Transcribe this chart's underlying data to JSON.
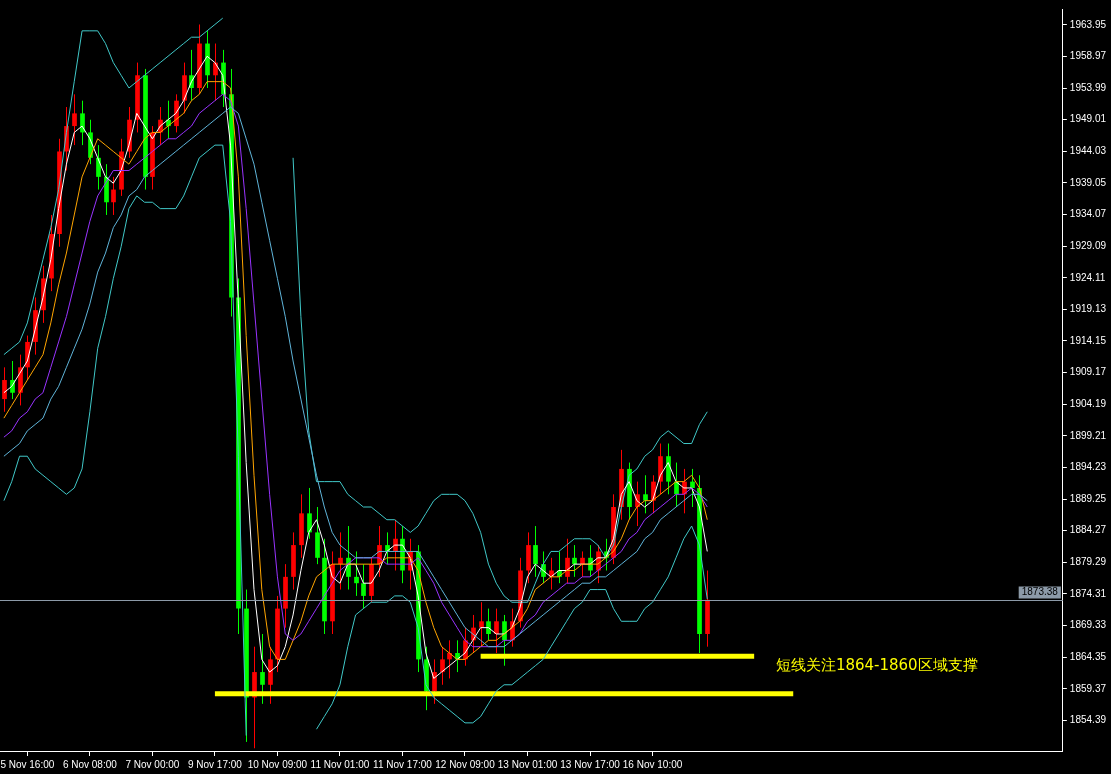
{
  "chart_data": {
    "type": "candlestick",
    "categories": [
      null,
      null,
      null,
      "5 Nov 16:00",
      null,
      null,
      null,
      null,
      null,
      null,
      null,
      "6 Nov 08:00",
      null,
      null,
      null,
      null,
      null,
      null,
      null,
      "7 Nov 00:00",
      null,
      null,
      null,
      null,
      null,
      null,
      null,
      "9 Nov 17:00",
      null,
      null,
      null,
      null,
      null,
      null,
      null,
      "10 Nov 09:00",
      null,
      null,
      null,
      null,
      null,
      null,
      null,
      "11 Nov 01:00",
      null,
      null,
      null,
      null,
      null,
      null,
      null,
      "11 Nov 17:00",
      null,
      null,
      null,
      null,
      null,
      null,
      null,
      "12 Nov 09:00",
      null,
      null,
      null,
      null,
      null,
      null,
      null,
      "13 Nov 01:00",
      null,
      null,
      null,
      null,
      null,
      null,
      null,
      "13 Nov 17:00",
      null,
      null,
      null,
      null,
      null,
      null,
      null,
      "16 Nov 10:00",
      null,
      null,
      null,
      null,
      null,
      null,
      null,
      null,
      null,
      null,
      null,
      null,
      null,
      null,
      null,
      null,
      null,
      null,
      null,
      null,
      null,
      null,
      null,
      null,
      null,
      null,
      null,
      null,
      null,
      null,
      null,
      null,
      null,
      null,
      null,
      null,
      null,
      null,
      null,
      null,
      null,
      null,
      null,
      null,
      null,
      null,
      null,
      null,
      null,
      null,
      null,
      null
    ],
    "ohlc": [
      [
        1905,
        1910,
        1903,
        1908
      ],
      [
        1908,
        1911,
        1905,
        1906
      ],
      [
        1906,
        1912,
        1904,
        1910
      ],
      [
        1910,
        1915,
        1908,
        1914
      ],
      [
        1914,
        1921,
        1912,
        1919
      ],
      [
        1919,
        1926,
        1917,
        1924
      ],
      [
        1924,
        1934,
        1922,
        1931
      ],
      [
        1931,
        1946,
        1929,
        1944
      ],
      [
        1944,
        1951,
        1941,
        1948
      ],
      [
        1948,
        1953,
        1945,
        1950
      ],
      [
        1950,
        1952,
        1945,
        1947
      ],
      [
        1947,
        1949,
        1942,
        1943
      ],
      [
        1943,
        1945,
        1938,
        1940
      ],
      [
        1940,
        1942,
        1934,
        1936
      ],
      [
        1936,
        1940,
        1934,
        1938
      ],
      [
        1938,
        1946,
        1937,
        1944
      ],
      [
        1944,
        1951,
        1943,
        1949
      ],
      [
        1949,
        1958,
        1947,
        1956
      ],
      [
        1956,
        1957,
        1938,
        1940
      ],
      [
        1940,
        1948,
        1938,
        1947
      ],
      [
        1947,
        1951,
        1945,
        1949
      ],
      [
        1949,
        1952,
        1946,
        1948
      ],
      [
        1948,
        1953,
        1947,
        1952
      ],
      [
        1952,
        1958,
        1950,
        1956
      ],
      [
        1956,
        1960,
        1952,
        1954
      ],
      [
        1954,
        1964,
        1953,
        1961
      ],
      [
        1961,
        1963,
        1954,
        1956
      ],
      [
        1956,
        1961,
        1952,
        1958
      ],
      [
        1958,
        1960,
        1951,
        1953
      ],
      [
        1953,
        1957,
        1918,
        1921
      ],
      [
        1921,
        1924,
        1868,
        1872
      ],
      [
        1872,
        1875,
        1851,
        1858
      ],
      [
        1858,
        1866,
        1850,
        1862
      ],
      [
        1862,
        1868,
        1857,
        1860
      ],
      [
        1860,
        1866,
        1857,
        1864
      ],
      [
        1864,
        1874,
        1862,
        1872
      ],
      [
        1872,
        1879,
        1869,
        1877
      ],
      [
        1877,
        1884,
        1875,
        1882
      ],
      [
        1882,
        1890,
        1880,
        1887
      ],
      [
        1887,
        1891,
        1883,
        1884
      ],
      [
        1884,
        1888,
        1879,
        1880
      ],
      [
        1880,
        1883,
        1868,
        1870
      ],
      [
        1870,
        1881,
        1868,
        1879
      ],
      [
        1879,
        1884,
        1875,
        1880
      ],
      [
        1880,
        1885,
        1875,
        1877
      ],
      [
        1877,
        1881,
        1874,
        1876
      ],
      [
        1876,
        1879,
        1872,
        1874
      ],
      [
        1874,
        1880,
        1873,
        1879
      ],
      [
        1879,
        1885,
        1877,
        1882
      ],
      [
        1882,
        1884,
        1879,
        1881
      ],
      [
        1881,
        1886,
        1878,
        1883
      ],
      [
        1883,
        1885,
        1876,
        1878
      ],
      [
        1878,
        1883,
        1875,
        1881
      ],
      [
        1881,
        1882,
        1862,
        1864
      ],
      [
        1864,
        1866,
        1856,
        1859
      ],
      [
        1859,
        1864,
        1857,
        1862
      ],
      [
        1862,
        1866,
        1860,
        1864
      ],
      [
        1864,
        1867,
        1861,
        1865
      ],
      [
        1865,
        1867,
        1862,
        1864
      ],
      [
        1864,
        1869,
        1863,
        1867
      ],
      [
        1867,
        1871,
        1865,
        1869
      ],
      [
        1869,
        1873,
        1866,
        1870
      ],
      [
        1870,
        1872,
        1867,
        1868
      ],
      [
        1868,
        1872,
        1865,
        1870
      ],
      [
        1870,
        1871,
        1863,
        1867
      ],
      [
        1867,
        1872,
        1866,
        1870
      ],
      [
        1870,
        1880,
        1869,
        1878
      ],
      [
        1878,
        1884,
        1876,
        1882
      ],
      [
        1882,
        1885,
        1877,
        1879
      ],
      [
        1879,
        1881,
        1876,
        1877
      ],
      [
        1877,
        1880,
        1875,
        1878
      ],
      [
        1878,
        1881,
        1876,
        1877
      ],
      [
        1877,
        1883,
        1876,
        1880
      ],
      [
        1880,
        1882,
        1877,
        1879
      ],
      [
        1879,
        1881,
        1877,
        1880
      ],
      [
        1880,
        1882,
        1877,
        1878
      ],
      [
        1878,
        1882,
        1876,
        1881
      ],
      [
        1881,
        1883,
        1878,
        1880
      ],
      [
        1880,
        1890,
        1879,
        1888
      ],
      [
        1888,
        1897,
        1886,
        1894
      ],
      [
        1894,
        1895,
        1886,
        1888
      ],
      [
        1888,
        1892,
        1885,
        1890
      ],
      [
        1890,
        1893,
        1887,
        1889
      ],
      [
        1889,
        1893,
        1887,
        1892
      ],
      [
        1892,
        1898,
        1890,
        1896
      ],
      [
        1896,
        1898,
        1890,
        1892
      ],
      [
        1892,
        1895,
        1888,
        1890
      ],
      [
        1890,
        1894,
        1887,
        1892
      ],
      [
        1892,
        1894,
        1888,
        1891
      ],
      [
        1891,
        1893,
        1865,
        1868
      ],
      [
        1868,
        1878,
        1866,
        1873.38
      ],
      null,
      null,
      null,
      null,
      null,
      null,
      null,
      null,
      null,
      null,
      null,
      null,
      null,
      null,
      null,
      null,
      null,
      null,
      null,
      null,
      null,
      null,
      null,
      null,
      null,
      null,
      null,
      null,
      null,
      null,
      null,
      null,
      null,
      null,
      null,
      null,
      null,
      null,
      null,
      null,
      null,
      null,
      null,
      null,
      null
    ],
    "colors": [
      "#ff0000",
      "#00ff00",
      "#ff0000",
      "#ff0000",
      "#ff0000",
      "#ff0000",
      "#ff0000",
      "#ff0000",
      "#ff0000",
      "#ff0000",
      "#00ff00",
      "#00ff00",
      "#00ff00",
      "#00ff00",
      "#ff0000",
      "#ff0000",
      "#ff0000",
      "#ff0000",
      "#00ff00",
      "#ff0000",
      "#ff0000",
      "#00ff00",
      "#ff0000",
      "#ff0000",
      "#00ff00",
      "#ff0000",
      "#00ff00",
      "#ff0000",
      "#00ff00",
      "#00ff00",
      "#00ff00",
      "#00ff00",
      "#ff0000",
      "#00ff00",
      "#ff0000",
      "#ff0000",
      "#ff0000",
      "#ff0000",
      "#ff0000",
      "#00ff00",
      "#00ff00",
      "#00ff00",
      "#ff0000",
      "#ff0000",
      "#00ff00",
      "#00ff00",
      "#00ff00",
      "#ff0000",
      "#ff0000",
      "#00ff00",
      "#ff0000",
      "#00ff00",
      "#ff0000",
      "#00ff00",
      "#00ff00",
      "#ff0000",
      "#ff0000",
      "#ff0000",
      "#00ff00",
      "#ff0000",
      "#ff0000",
      "#ff0000",
      "#00ff00",
      "#ff0000",
      "#00ff00",
      "#ff0000",
      "#ff0000",
      "#ff0000",
      "#00ff00",
      "#00ff00",
      "#ff0000",
      "#00ff00",
      "#ff0000",
      "#00ff00",
      "#ff0000",
      "#00ff00",
      "#ff0000",
      "#00ff00",
      "#ff0000",
      "#ff0000",
      "#00ff00",
      "#ff0000",
      "#00ff00",
      "#ff0000",
      "#ff0000",
      "#00ff00",
      "#00ff00",
      "#ff0000",
      "#00ff00",
      "#00ff00",
      "#ff0000",
      null,
      null,
      null,
      null,
      null,
      null,
      null,
      null,
      null,
      null,
      null,
      null,
      null,
      null,
      null,
      null,
      null,
      null,
      null,
      null,
      null,
      null,
      null,
      null,
      null,
      null,
      null,
      null,
      null,
      null,
      null,
      null,
      null,
      null,
      null,
      null,
      null,
      null,
      null,
      null,
      null,
      null,
      null,
      null,
      null
    ],
    "series": [
      {
        "type": "line",
        "color": "#5fb4d9",
        "values": [
          1896,
          1897,
          1898,
          1900,
          1901,
          1902,
          1905,
          1907,
          1910,
          1913,
          1916,
          1920,
          1925,
          1928,
          1932,
          1934,
          1937,
          1938,
          1940,
          1941,
          1942,
          1943,
          1944,
          1945,
          1946,
          1947,
          1948,
          1949,
          1950,
          1951,
          1950,
          1946,
          1942,
          1936,
          1930,
          1924,
          1918,
          1911,
          1905,
          1899,
          1893,
          1888,
          1884,
          1882,
          1881,
          1880,
          1880,
          1880,
          1881,
          1881,
          1881,
          1881,
          1881,
          1881,
          1879,
          1877,
          1875,
          1873,
          1871,
          1869,
          1868,
          1867,
          1866,
          1866,
          1866,
          1867,
          1868,
          1869,
          1870,
          1871,
          1872,
          1873,
          1874,
          1875,
          1876,
          1876,
          1877,
          1877,
          1878,
          1879,
          1880,
          1881,
          1883,
          1884,
          1886,
          1887,
          1888,
          1889,
          1890,
          1890,
          1889,
          null,
          null,
          null,
          null,
          null,
          null,
          null,
          null,
          null,
          null,
          null,
          null,
          null,
          null,
          null,
          null,
          null,
          null,
          null,
          null,
          null,
          null,
          null,
          null,
          null,
          null,
          null,
          null,
          null,
          null,
          null,
          null,
          null,
          null,
          null,
          null,
          null,
          null,
          null,
          null,
          null,
          null,
          null,
          null,
          null
        ]
      },
      {
        "type": "line",
        "color": "#9933ff",
        "values": [
          1899,
          1900,
          1902,
          1903,
          1905,
          1906,
          1910,
          1914,
          1918,
          1923,
          1928,
          1933,
          1937,
          1939,
          1941,
          1941,
          1941,
          1942,
          1943,
          1944,
          1945,
          1946,
          1946,
          1947,
          1948,
          1950,
          1951,
          1952,
          1953,
          1952,
          1948,
          1935,
          1920,
          1905,
          1890,
          1877,
          1868,
          1867,
          1868,
          1870,
          1872,
          1874,
          1876,
          1878,
          1879,
          1880,
          1880,
          1880,
          1880,
          1879,
          1879,
          1879,
          1879,
          1880,
          1878,
          1876,
          1873,
          1871,
          1869,
          1867,
          1866,
          1866,
          1866,
          1866,
          1867,
          1867,
          1868,
          1870,
          1871,
          1873,
          1874,
          1875,
          1876,
          1876,
          1877,
          1877,
          1878,
          1879,
          1880,
          1881,
          1883,
          1884,
          1886,
          1887,
          1888,
          1889,
          1890,
          1890,
          1891,
          1890,
          1888,
          null,
          null,
          null,
          null,
          null,
          null,
          null,
          null,
          null,
          null,
          null,
          null,
          null,
          null,
          null,
          null,
          null,
          null,
          null,
          null,
          null,
          null,
          null,
          null,
          null,
          null,
          null,
          null,
          null,
          null,
          null,
          null,
          null,
          null,
          null,
          null,
          null,
          null,
          null,
          null,
          null,
          null,
          null,
          null,
          null
        ]
      },
      {
        "type": "line",
        "color": "#ffa500",
        "values": [
          1902,
          1904,
          1906,
          1908,
          1910,
          1912,
          1917,
          1923,
          1928,
          1934,
          1940,
          1943,
          1946,
          1945,
          1944,
          1943,
          1942,
          1944,
          1946,
          1947,
          1947,
          1948,
          1949,
          1950,
          1952,
          1953,
          1955,
          1955,
          1955,
          1954,
          1940,
          1915,
          1893,
          1875,
          1866,
          1864,
          1864,
          1867,
          1870,
          1874,
          1877,
          1878,
          1879,
          1879,
          1879,
          1879,
          1879,
          1879,
          1879,
          1880,
          1880,
          1880,
          1880,
          1878,
          1873,
          1869,
          1866,
          1865,
          1864,
          1864,
          1865,
          1866,
          1867,
          1867,
          1868,
          1869,
          1870,
          1872,
          1875,
          1876,
          1877,
          1877,
          1878,
          1878,
          1879,
          1879,
          1879,
          1880,
          1881,
          1883,
          1886,
          1888,
          1889,
          1889,
          1890,
          1891,
          1892,
          1892,
          1893,
          1891,
          1886,
          null,
          null,
          null,
          null,
          null,
          null,
          null,
          null,
          null,
          null,
          null,
          null,
          null,
          null,
          null,
          null,
          null,
          null,
          null,
          null,
          null,
          null,
          null,
          null,
          null,
          null,
          null,
          null,
          null,
          null,
          null,
          null,
          null,
          null,
          null,
          null,
          null,
          null,
          null,
          null,
          null,
          null,
          null,
          null,
          null
        ]
      },
      {
        "type": "line",
        "color": "#ffffff",
        "values": [
          1906,
          1907,
          1909,
          1911,
          1916,
          1921,
          1927,
          1935,
          1942,
          1947,
          1948,
          1946,
          1943,
          1940,
          1939,
          1941,
          1945,
          1950,
          1948,
          1946,
          1948,
          1949,
          1950,
          1952,
          1955,
          1957,
          1959,
          1958,
          1956,
          1945,
          1920,
          1895,
          1875,
          1864,
          1862,
          1863,
          1866,
          1871,
          1878,
          1884,
          1886,
          1882,
          1877,
          1876,
          1879,
          1879,
          1876,
          1876,
          1878,
          1881,
          1882,
          1882,
          1880,
          1874,
          1865,
          1861,
          1862,
          1863,
          1864,
          1865,
          1867,
          1869,
          1869,
          1868,
          1868,
          1869,
          1872,
          1877,
          1879,
          1878,
          1877,
          1878,
          1878,
          1879,
          1879,
          1879,
          1880,
          1880,
          1883,
          1890,
          1892,
          1889,
          1888,
          1889,
          1893,
          1895,
          1892,
          1891,
          1891,
          1888,
          1881,
          null,
          null,
          null,
          null,
          null,
          null,
          null,
          null,
          null,
          null,
          null,
          null,
          null,
          null,
          null,
          null,
          null,
          null,
          null,
          null,
          null,
          null,
          null,
          null,
          null,
          null,
          null,
          null,
          null,
          null,
          null,
          null,
          null,
          null,
          null,
          null,
          null,
          null,
          null,
          null,
          null,
          null,
          null,
          null,
          null
        ]
      },
      {
        "type": "line",
        "color": "#40c8c8",
        "values": [
          1912,
          1913,
          1914,
          1917,
          1922,
          1927,
          1932,
          1938,
          1947,
          1955,
          1963,
          1963,
          1963,
          1961,
          1958,
          1956,
          1954,
          1955,
          1956,
          1957,
          1958,
          1959,
          1960,
          1961,
          1962,
          1962,
          1963,
          1964,
          1965,
          null,
          null,
          null,
          null,
          null,
          null,
          null,
          null,
          1943,
          1918,
          1900,
          1892,
          1892,
          1892,
          1892,
          1890,
          1889,
          1888,
          1888,
          1887,
          1886,
          1886,
          1885,
          1884,
          1885,
          1887,
          1889,
          1890,
          1890,
          1890,
          1889,
          1887,
          1884,
          1879,
          1876,
          1874,
          1873,
          1873,
          1873,
          1876,
          1879,
          1881,
          1881,
          1882,
          1883,
          1883,
          1883,
          1882,
          1880,
          1882,
          1888,
          1893,
          1894,
          1896,
          1897,
          1899,
          1900,
          1899,
          1898,
          1898,
          1901,
          1903,
          null,
          null,
          null,
          null,
          null,
          null,
          null,
          null,
          null,
          null,
          null,
          null,
          null,
          null,
          null,
          null,
          null,
          null,
          null,
          null,
          null,
          null,
          null,
          null,
          null,
          null,
          null,
          null,
          null,
          null,
          null,
          null,
          null,
          null,
          null,
          null,
          null,
          null,
          null,
          null,
          null,
          null,
          null,
          null,
          null
        ]
      },
      {
        "type": "line",
        "color": "#40c8c8",
        "values": [
          1889,
          1892,
          1896,
          1896,
          1894,
          1893,
          1892,
          1891,
          1890,
          1891,
          1894,
          1903,
          1913,
          1918,
          1924,
          1929,
          1935,
          1937,
          1936,
          1936,
          1935,
          1935,
          1935,
          1937,
          1940,
          1943,
          1944,
          1945,
          1945,
          1933,
          1896,
          1852,
          null,
          null,
          null,
          null,
          null,
          null,
          null,
          null,
          1853,
          1855,
          1857,
          1860,
          1866,
          1871,
          1872,
          1873,
          1873,
          1873,
          1874,
          1874,
          1873,
          1869,
          1860,
          1858,
          1857,
          1856,
          1855,
          1854,
          1854,
          1855,
          1857,
          1859,
          1860,
          1860,
          1861,
          1862,
          1863,
          1864,
          1866,
          1868,
          1870,
          1872,
          1873,
          1875,
          1875,
          1875,
          1872,
          1870,
          1870,
          1870,
          1872,
          1873,
          1875,
          1877,
          1880,
          1883,
          1885,
          1882,
          1873.5,
          null,
          null,
          null,
          null,
          null,
          null,
          null,
          null,
          null,
          null,
          null,
          null,
          null,
          null,
          null,
          null,
          null,
          null,
          null,
          null,
          null,
          null,
          null,
          null,
          null,
          null,
          null,
          null,
          null,
          null,
          null,
          null,
          null,
          null,
          null,
          null,
          null,
          null,
          null,
          null,
          null,
          null,
          null,
          null,
          null
        ]
      },
      {
        "type": "line",
        "color": "#ffff00",
        "values": [
          null,
          null,
          null,
          null,
          null,
          null,
          null,
          null,
          null,
          null,
          null,
          null,
          null,
          null,
          null,
          null,
          null,
          null,
          null,
          null,
          null,
          null,
          null,
          null,
          null,
          null,
          null,
          null,
          null,
          null,
          null,
          null,
          null,
          null,
          null,
          null,
          null,
          null,
          null,
          null,
          null,
          null,
          null,
          null,
          null,
          null,
          null,
          null,
          null,
          null,
          null,
          null,
          null,
          null,
          null,
          null,
          null,
          null,
          null,
          null,
          null,
          1864.5,
          1864.5,
          1864.5,
          1864.5,
          1864.5,
          1864.5,
          1864.5,
          1864.5,
          1864.5,
          1864.5,
          1864.5,
          1864.5,
          1864.5,
          1864.5,
          1864.5,
          1864.5,
          1864.5,
          1864.5,
          1864.5,
          1864.5,
          1864.5,
          1864.5,
          1864.5,
          1864.5,
          1864.5,
          1864.5,
          1864.5,
          1864.5,
          1864.5,
          1864.5,
          1864.5,
          1864.5,
          1864.5,
          1864.5,
          1864.5,
          1864.5,
          null,
          null,
          null,
          null,
          null,
          null,
          null,
          null,
          null,
          null,
          null,
          null,
          null,
          null,
          null,
          null,
          null,
          null,
          null,
          null,
          null,
          null,
          null,
          null,
          null,
          null,
          null,
          null,
          null,
          null,
          null,
          null,
          null,
          null,
          null,
          null,
          null,
          null,
          null
        ]
      },
      {
        "type": "line",
        "color": "#ffff00",
        "values": [
          null,
          null,
          null,
          null,
          null,
          null,
          null,
          null,
          null,
          null,
          null,
          null,
          null,
          null,
          null,
          null,
          null,
          null,
          null,
          null,
          null,
          null,
          null,
          null,
          null,
          null,
          null,
          1858.6,
          1858.6,
          1858.6,
          1858.6,
          1858.6,
          1858.6,
          1858.6,
          1858.6,
          1858.6,
          1858.6,
          1858.6,
          1858.6,
          1858.6,
          1858.6,
          1858.6,
          1858.6,
          1858.6,
          1858.6,
          1858.6,
          1858.6,
          1858.6,
          1858.6,
          1858.6,
          1858.6,
          1858.6,
          1858.6,
          1858.6,
          1858.6,
          1858.6,
          1858.6,
          1858.6,
          1858.6,
          1858.6,
          1858.6,
          1858.6,
          1858.6,
          1858.6,
          1858.6,
          1858.6,
          1858.6,
          1858.6,
          1858.6,
          1858.6,
          1858.6,
          1858.6,
          1858.6,
          1858.6,
          1858.6,
          1858.6,
          1858.6,
          1858.6,
          1858.6,
          1858.6,
          1858.6,
          1858.6,
          1858.6,
          1858.6,
          1858.6,
          1858.6,
          1858.6,
          1858.6,
          1858.6,
          1858.6,
          1858.6,
          1858.6,
          1858.6,
          1858.6,
          1858.6,
          1858.6,
          1858.6,
          1858.6,
          1858.6,
          1858.6,
          1858.6,
          1858.6,
          null,
          null,
          null,
          null,
          null,
          null,
          null,
          null,
          null,
          null,
          null,
          null,
          null,
          null,
          null,
          null,
          null,
          null,
          null,
          null,
          null,
          null,
          null,
          null,
          null,
          null,
          null,
          null,
          null,
          null,
          null,
          null,
          null,
          null
        ]
      }
    ],
    "ylim": [
      1849.57,
      1966.44
    ],
    "yticks": [
      1854.39,
      1859.37,
      1864.35,
      1869.33,
      1874.31,
      1879.29,
      1884.27,
      1889.25,
      1894.23,
      1899.21,
      1904.19,
      1909.17,
      1914.15,
      1919.13,
      1924.11,
      1929.09,
      1934.07,
      1939.05,
      1944.03,
      1949.01,
      1953.99,
      1958.97,
      1963.95
    ],
    "ref_lines": [
      {
        "axis": "y",
        "value": 1873.38,
        "label": "1873.38",
        "color": "#8c9aa8"
      }
    ],
    "annotations": [
      "短线关注1864-1860区域支撑"
    ]
  }
}
